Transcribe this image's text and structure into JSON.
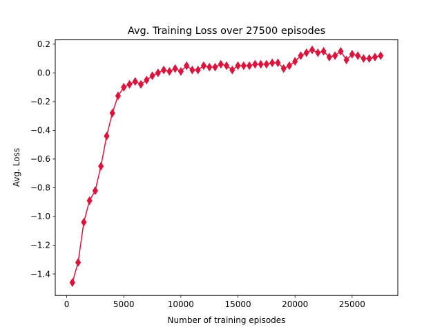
{
  "chart_data": {
    "type": "line",
    "title": "Avg. Training Loss over 27500 episodes",
    "xlabel": "Number of training episodes",
    "ylabel": "Avg. Loss",
    "xlim": [
      -1000,
      29000
    ],
    "ylim": [
      -1.55,
      0.23
    ],
    "xticks": [
      0,
      5000,
      10000,
      15000,
      20000,
      25000
    ],
    "xtick_labels": [
      "0",
      "5000",
      "10000",
      "15000",
      "20000",
      "25000"
    ],
    "yticks": [
      -1.4,
      -1.2,
      -1.0,
      -0.8,
      -0.6,
      -0.4,
      -0.2,
      0.0,
      0.2
    ],
    "ytick_labels": [
      "−1.4",
      "−1.2",
      "−1.0",
      "−0.8",
      "−0.6",
      "−0.4",
      "−0.2",
      "0.0",
      "0.2"
    ],
    "grid": false,
    "colors": {
      "line": "#dc143c",
      "marker": "#dc143c"
    },
    "marker": "diamond",
    "series": [
      {
        "x": [
          500,
          1000,
          1500,
          2000,
          2500,
          3000,
          3500,
          4000,
          4500,
          5000,
          5500,
          6000,
          6500,
          7000,
          7500,
          8000,
          8500,
          9000,
          9500,
          10000,
          10500,
          11000,
          11500,
          12000,
          12500,
          13000,
          13500,
          14000,
          14500,
          15000,
          15500,
          16000,
          16500,
          17000,
          17500,
          18000,
          18500,
          19000,
          19500,
          20000,
          20500,
          21000,
          21500,
          22000,
          22500,
          23000,
          23500,
          24000,
          24500,
          25000,
          25500,
          26000,
          26500,
          27000,
          27500
        ],
        "values": [
          -1.46,
          -1.32,
          -1.04,
          -0.89,
          -0.82,
          -0.65,
          -0.44,
          -0.28,
          -0.16,
          -0.1,
          -0.08,
          -0.06,
          -0.08,
          -0.05,
          -0.02,
          0.0,
          0.02,
          0.01,
          0.03,
          0.01,
          0.05,
          0.02,
          0.02,
          0.05,
          0.04,
          0.04,
          0.06,
          0.05,
          0.02,
          0.05,
          0.05,
          0.05,
          0.06,
          0.06,
          0.06,
          0.07,
          0.07,
          0.03,
          0.05,
          0.08,
          0.12,
          0.14,
          0.16,
          0.14,
          0.15,
          0.11,
          0.12,
          0.15,
          0.09,
          0.13,
          0.12,
          0.1,
          0.1,
          0.11,
          0.12
        ]
      }
    ]
  }
}
